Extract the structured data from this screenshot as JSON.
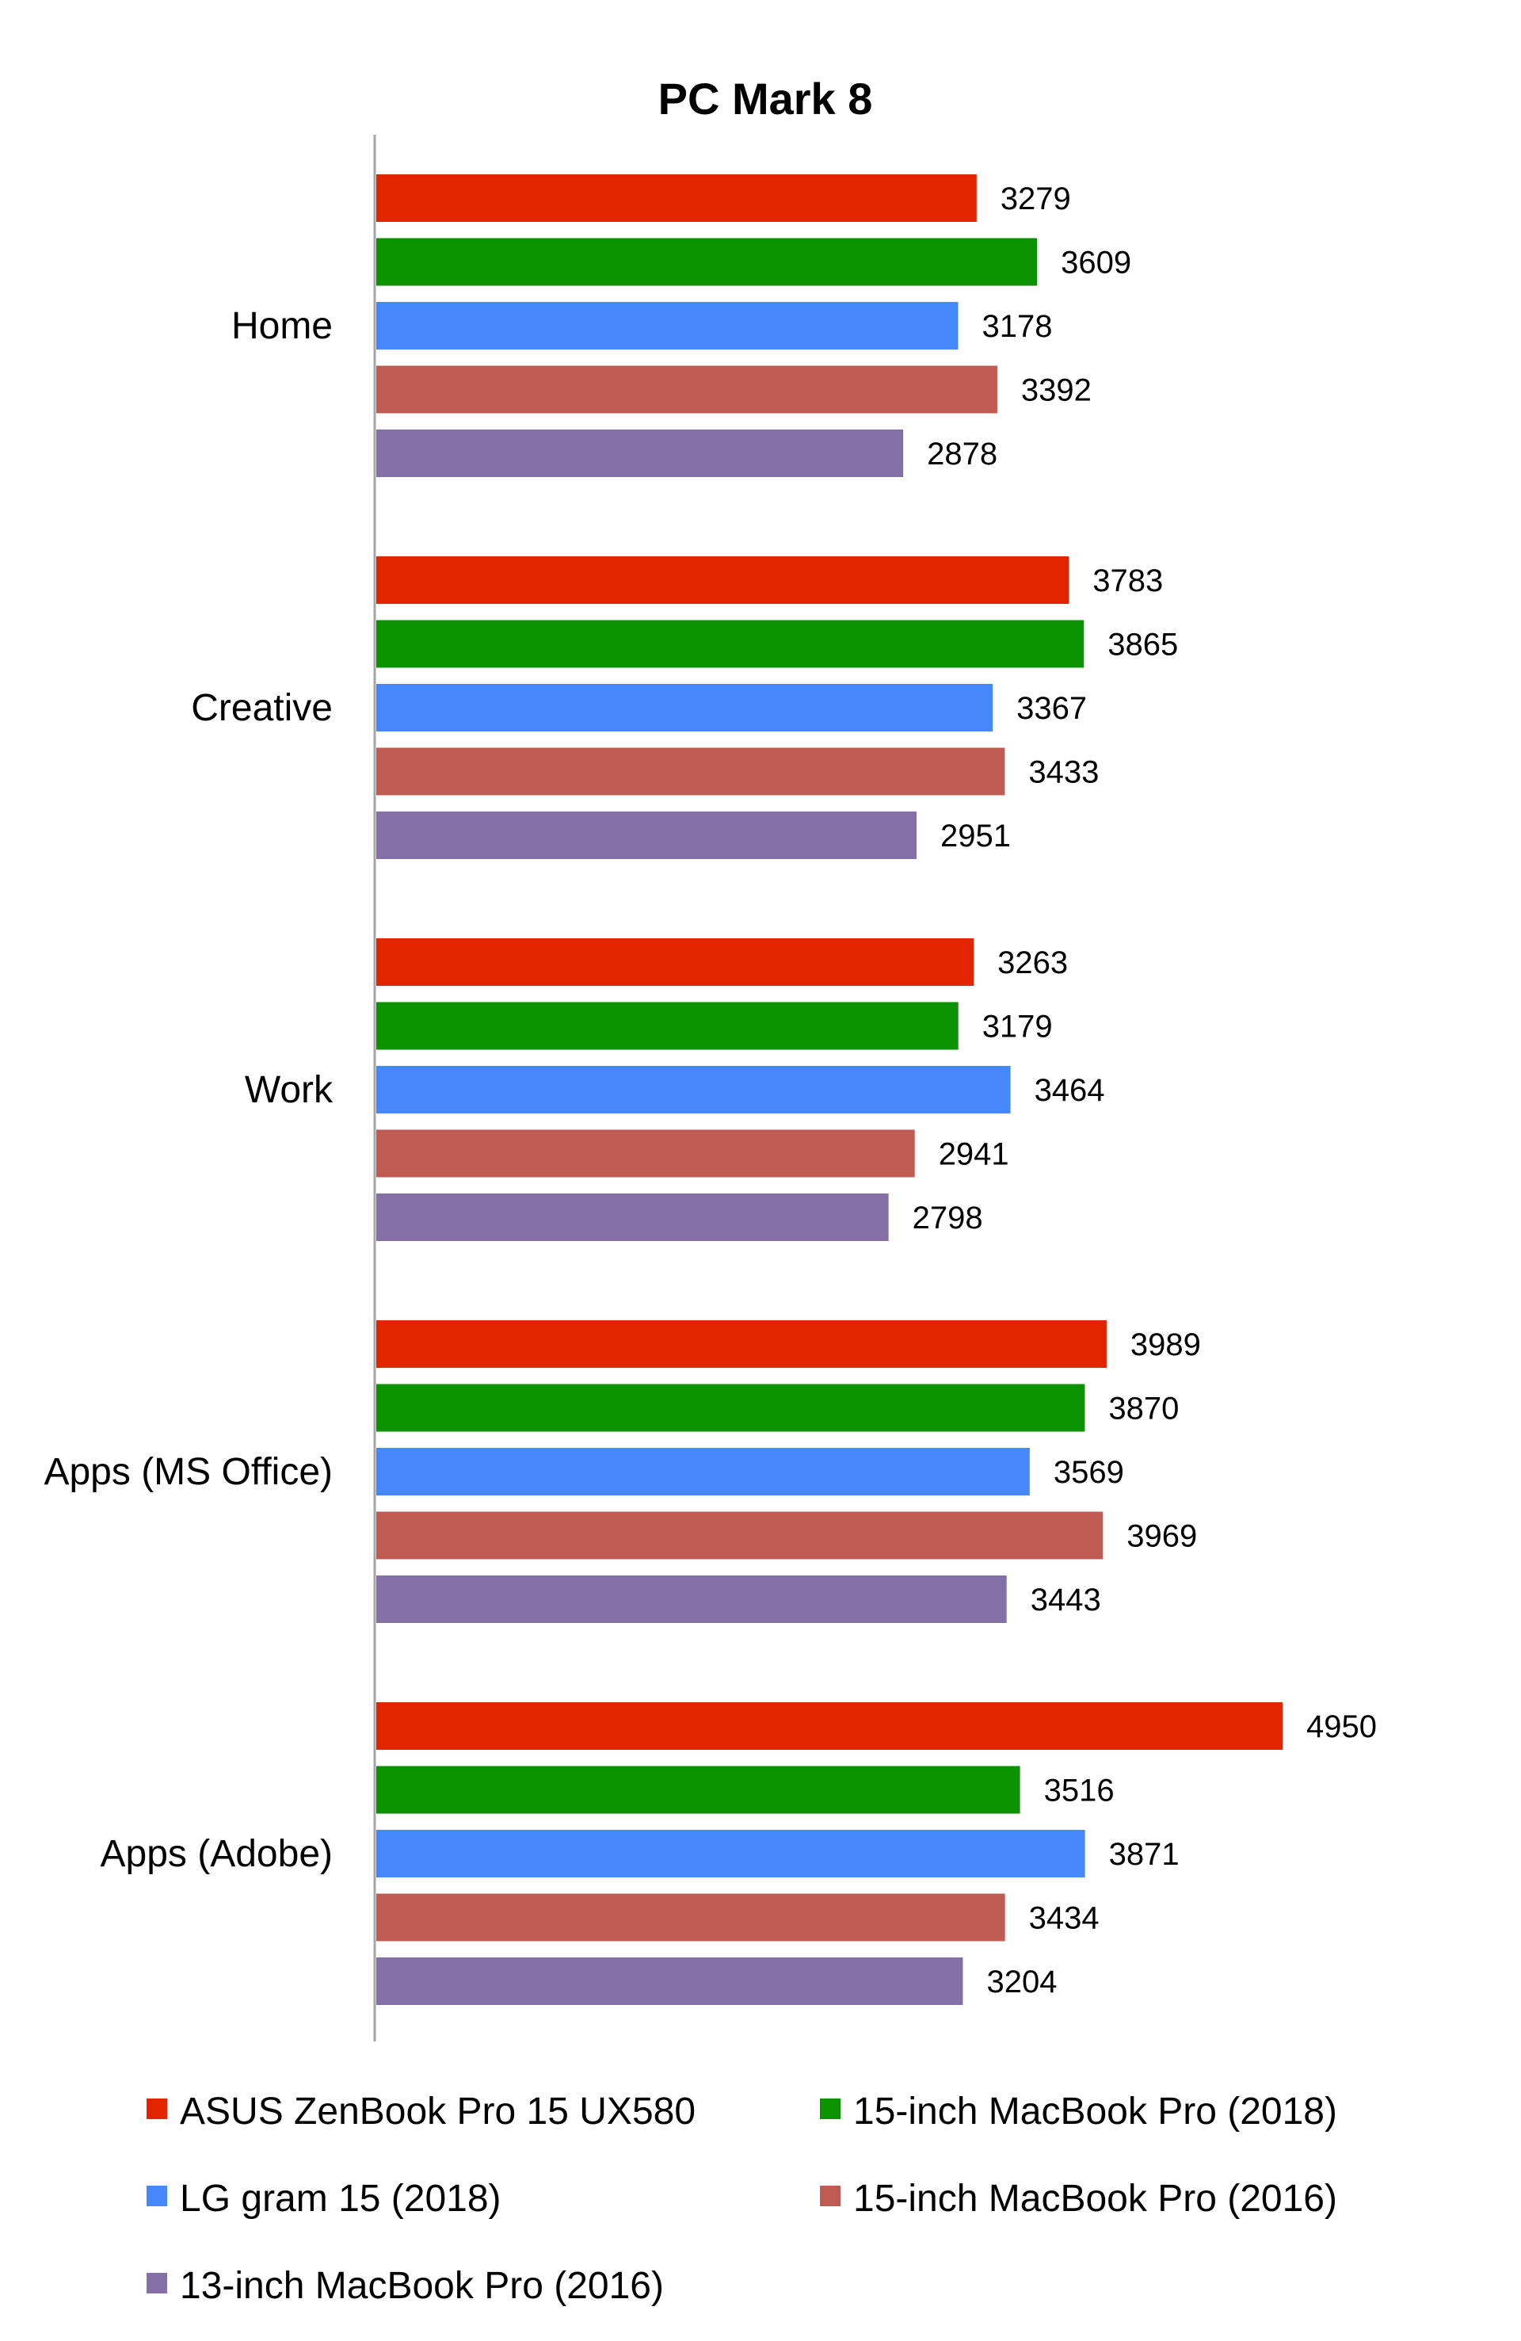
{
  "chart_data": {
    "type": "bar",
    "orientation": "horizontal",
    "title": "PC Mark 8",
    "xlabel": "",
    "ylabel": "",
    "categories": [
      "Home",
      "Creative",
      "Work",
      "Apps (MS Office)",
      "Apps (Adobe)"
    ],
    "series": [
      {
        "name": "ASUS ZenBook Pro 15 UX580",
        "color": "#e32400",
        "values": [
          3279,
          3783,
          3263,
          3989,
          4950
        ]
      },
      {
        "name": "15-inch MacBook Pro (2018)",
        "color": "#0a9200",
        "values": [
          3609,
          3865,
          3179,
          3870,
          3516
        ]
      },
      {
        "name": "LG gram 15 (2018)",
        "color": "#4488fc",
        "values": [
          3178,
          3367,
          3464,
          3569,
          3871
        ]
      },
      {
        "name": "15-inch MacBook Pro (2016)",
        "color": "#bf5b53",
        "values": [
          3392,
          3433,
          2941,
          3969,
          3434
        ]
      },
      {
        "name": "13-inch MacBook Pro (2016)",
        "color": "#8470a6",
        "values": [
          2878,
          2951,
          2798,
          3443,
          3204
        ]
      }
    ],
    "xlim": [
      0,
      5750
    ],
    "grid": false,
    "legend_position": "bottom",
    "data_labels": true
  }
}
